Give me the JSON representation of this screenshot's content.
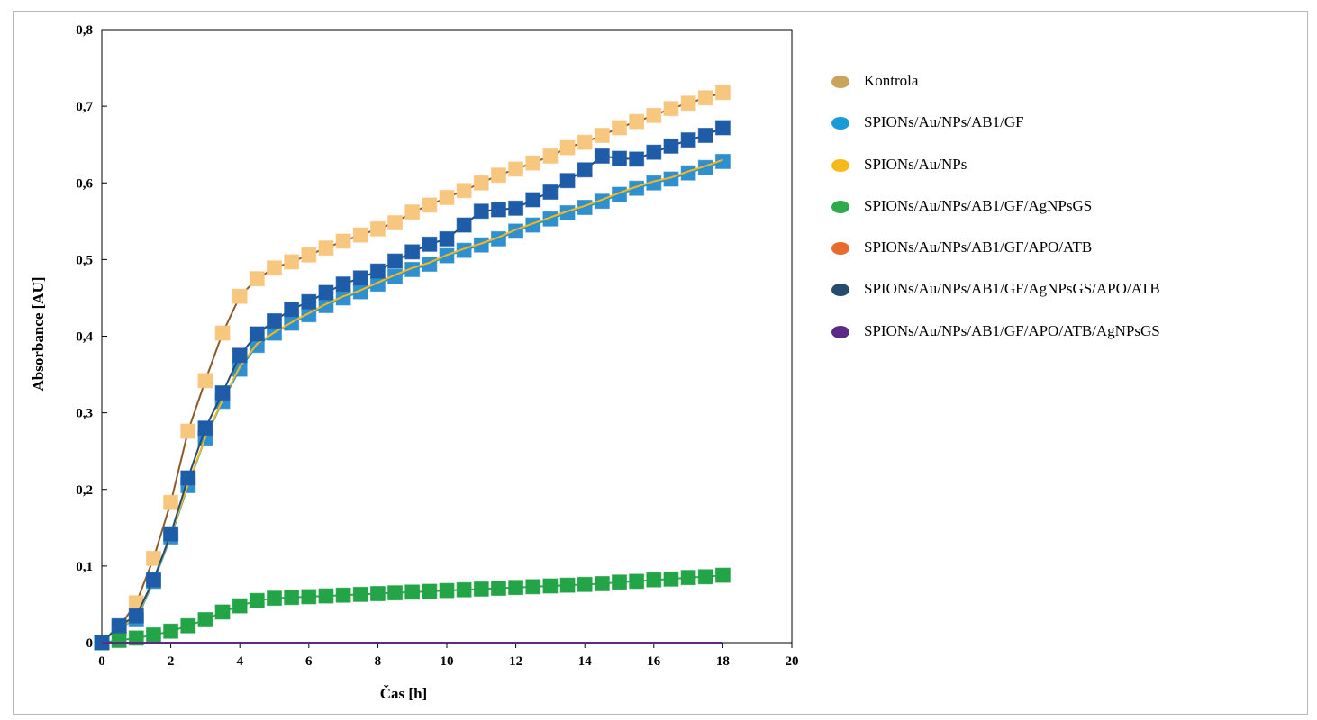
{
  "chart_data": {
    "type": "line",
    "xlabel": "Čas [h]",
    "ylabel": "Absorbance [AU]",
    "xlim": [
      0,
      20
    ],
    "ylim": [
      0,
      0.8
    ],
    "x_ticks": [
      "0",
      "2",
      "4",
      "6",
      "8",
      "10",
      "12",
      "14",
      "16",
      "18",
      "20"
    ],
    "y_ticks": [
      "0",
      "0,1",
      "0,2",
      "0,3",
      "0,4",
      "0,5",
      "0,6",
      "0,7",
      "0,8"
    ],
    "grid": false,
    "legend_position": "right",
    "x": [
      0,
      0.5,
      1,
      1.5,
      2,
      2.5,
      3,
      3.5,
      4,
      4.5,
      5,
      5.5,
      6,
      6.5,
      7,
      7.5,
      8,
      8.5,
      9,
      9.5,
      10,
      10.5,
      11,
      11.5,
      12,
      12.5,
      13,
      13.5,
      14,
      14.5,
      15,
      15.5,
      16,
      16.5,
      17,
      17.5,
      18
    ],
    "series": [
      {
        "name": "Kontrola",
        "line_color": "#8b5a2b",
        "legend_color": "#c9a55c",
        "marker_color": "#f7c77f",
        "values": [
          0,
          0.02,
          0.052,
          0.11,
          0.183,
          0.276,
          0.342,
          0.404,
          0.452,
          0.475,
          0.489,
          0.497,
          0.506,
          0.515,
          0.524,
          0.532,
          0.54,
          0.548,
          0.562,
          0.571,
          0.581,
          0.59,
          0.6,
          0.61,
          0.618,
          0.626,
          0.635,
          0.646,
          0.653,
          0.662,
          0.672,
          0.68,
          0.688,
          0.697,
          0.704,
          0.711,
          0.718
        ]
      },
      {
        "name": "SPIONs/Au/NPs/AB1/GF",
        "line_color": "#1a9bd7",
        "legend_color": "#1a9bd7",
        "marker_color": "#2f8fcf",
        "values": [
          0,
          0.02,
          0.03,
          0.08,
          0.138,
          0.205,
          0.267,
          0.315,
          0.357,
          0.388,
          0.404,
          0.417,
          0.428,
          0.44,
          0.45,
          0.458,
          0.468,
          0.478,
          0.487,
          0.494,
          0.505,
          0.512,
          0.519,
          0.527,
          0.537,
          0.545,
          0.553,
          0.561,
          0.568,
          0.576,
          0.585,
          0.593,
          0.6,
          0.605,
          0.613,
          0.62,
          0.628
        ]
      },
      {
        "name": "SPIONs/Au/NPs",
        "line_color": "#f6b91a",
        "legend_color": "#f6b91a",
        "marker_color": "#f6b91a",
        "show_markers": false,
        "values": [
          0,
          0.02,
          0.032,
          0.082,
          0.14,
          0.207,
          0.268,
          0.317,
          0.36,
          0.39,
          0.405,
          0.418,
          0.43,
          0.442,
          0.452,
          0.46,
          0.47,
          0.48,
          0.489,
          0.496,
          0.506,
          0.514,
          0.521,
          0.529,
          0.539,
          0.547,
          0.555,
          0.563,
          0.57,
          0.578,
          0.587,
          0.595,
          0.602,
          0.607,
          0.615,
          0.622,
          0.63
        ]
      },
      {
        "name": "SPIONs/Au/NPs/AB1/GF/AgNPsGS",
        "line_color": "#2eaa4a",
        "legend_color": "#2eaa4a",
        "marker_color": "#22a447",
        "values": [
          0,
          0.003,
          0.006,
          0.01,
          0.015,
          0.022,
          0.03,
          0.04,
          0.048,
          0.055,
          0.058,
          0.059,
          0.06,
          0.061,
          0.062,
          0.063,
          0.064,
          0.065,
          0.066,
          0.067,
          0.068,
          0.069,
          0.07,
          0.071,
          0.072,
          0.073,
          0.074,
          0.075,
          0.076,
          0.077,
          0.079,
          0.08,
          0.082,
          0.083,
          0.085,
          0.086,
          0.088
        ]
      },
      {
        "name": "SPIONs/Au/NPs/AB1/GF/APO/ATB",
        "line_color": "#e96b2b",
        "legend_color": "#e96b2b",
        "marker_color": "#e96b2b",
        "show_markers": false,
        "values": [
          0,
          0,
          0,
          0,
          0,
          0,
          0,
          0,
          0,
          0,
          0,
          0,
          0,
          0,
          0,
          0,
          0,
          0,
          0,
          0,
          0,
          0,
          0,
          0,
          0,
          0,
          0,
          0,
          0,
          0,
          0,
          0,
          0,
          0,
          0,
          0,
          0
        ]
      },
      {
        "name": "SPIONs/Au/NPs/AB1/GF/AgNPsGS/APO/ATB",
        "line_color": "#274b6e",
        "legend_color": "#274b6e",
        "marker_color": "#1f5ca8",
        "values": [
          0,
          0.022,
          0.035,
          0.082,
          0.142,
          0.215,
          0.28,
          0.326,
          0.375,
          0.403,
          0.42,
          0.435,
          0.445,
          0.457,
          0.468,
          0.476,
          0.485,
          0.498,
          0.51,
          0.52,
          0.527,
          0.545,
          0.563,
          0.565,
          0.567,
          0.578,
          0.588,
          0.603,
          0.617,
          0.635,
          0.632,
          0.631,
          0.64,
          0.648,
          0.656,
          0.662,
          0.672
        ]
      },
      {
        "name": "SPIONs/Au/NPs/AB1/GF/APO/ATB/AgNPsGS",
        "line_color": "#5b2a86",
        "legend_color": "#5b2a86",
        "marker_color": "#5b2a86",
        "show_markers": false,
        "values": [
          0,
          0,
          0,
          0,
          0,
          0,
          0,
          0,
          0,
          0,
          0,
          0,
          0,
          0,
          0,
          0,
          0,
          0,
          0,
          0,
          0,
          0,
          0,
          0,
          0,
          0,
          0,
          0,
          0,
          0,
          0,
          0,
          0,
          0,
          0,
          0,
          0
        ]
      }
    ]
  }
}
